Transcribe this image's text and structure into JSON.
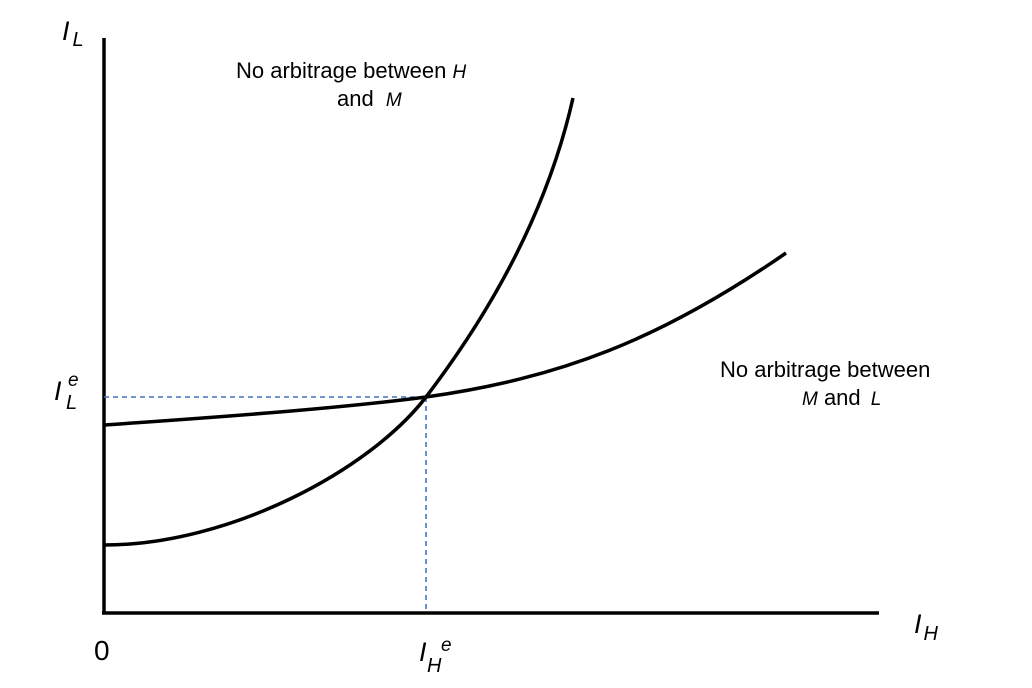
{
  "axes": {
    "y_symbol": "I",
    "y_sub": "L",
    "x_symbol": "I",
    "x_sub": "H",
    "origin": "0"
  },
  "equilibrium": {
    "y_symbol": "I",
    "y_sup": "e",
    "y_sub": "L",
    "x_symbol": "I",
    "x_sup": "e",
    "x_sub": "H"
  },
  "curves": {
    "hm": {
      "label_text_1": "No arbitrage between ",
      "label_var_1": "H",
      "label_text_2": "and ",
      "label_var_2": "M"
    },
    "ml": {
      "label_text_1": "No arbitrage between",
      "label_var_1": "M",
      "label_text_2": " and ",
      "label_var_2": "L"
    }
  },
  "colors": {
    "curve": "#000000",
    "axis": "#000000",
    "guide": "#4472c4"
  }
}
